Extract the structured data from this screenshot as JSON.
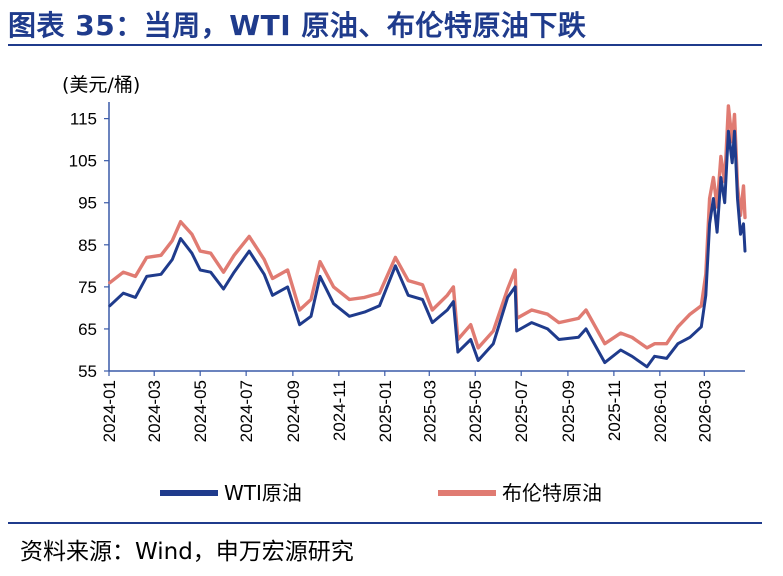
{
  "title": "图表 35：当周，WTI 原油、布伦特原油下跌",
  "unit": "(美元/桶)",
  "source": "资料来源：Wind，申万宏源研究",
  "colors": {
    "wti": "#1f3b8c",
    "brent": "#e07b72",
    "axis": "#3a5aa8"
  },
  "chart_data": {
    "type": "line",
    "title": "图表 35：当周，WTI 原油、布伦特原油下跌",
    "ylabel": "(美元/桶)",
    "xlabel": "",
    "ylim": [
      55,
      118
    ],
    "xlim": [
      "2024-01-01",
      "2026-04-24"
    ],
    "y_ticks": [
      "115",
      "105",
      "95",
      "85",
      "75",
      "65",
      "55"
    ],
    "x_ticks": [
      "2024-01",
      "2024-03",
      "2024-05",
      "2024-07",
      "2024-09",
      "2024-11",
      "2025-01",
      "2025-03",
      "2025-05",
      "2025-07",
      "2025-09",
      "2025-11",
      "2026-01",
      "2026-03"
    ],
    "grid": false,
    "legend": "bottom",
    "series": [
      {
        "name": "WTI原油",
        "points": [
          [
            "2024-01-02",
            70.5
          ],
          [
            "2024-01-20",
            73.5
          ],
          [
            "2024-02-05",
            72.5
          ],
          [
            "2024-02-20",
            77.5
          ],
          [
            "2024-03-10",
            78.0
          ],
          [
            "2024-03-25",
            81.5
          ],
          [
            "2024-04-05",
            86.5
          ],
          [
            "2024-04-20",
            83.0
          ],
          [
            "2024-05-01",
            79.0
          ],
          [
            "2024-05-15",
            78.5
          ],
          [
            "2024-06-01",
            74.5
          ],
          [
            "2024-06-15",
            78.5
          ],
          [
            "2024-07-05",
            83.5
          ],
          [
            "2024-07-25",
            78.0
          ],
          [
            "2024-08-05",
            73.0
          ],
          [
            "2024-08-25",
            75.0
          ],
          [
            "2024-09-10",
            66.0
          ],
          [
            "2024-09-25",
            68.0
          ],
          [
            "2024-10-07",
            77.5
          ],
          [
            "2024-10-25",
            71.0
          ],
          [
            "2024-11-15",
            68.0
          ],
          [
            "2024-12-05",
            69.0
          ],
          [
            "2024-12-25",
            70.5
          ],
          [
            "2025-01-15",
            80.0
          ],
          [
            "2025-02-01",
            73.0
          ],
          [
            "2025-02-20",
            72.0
          ],
          [
            "2025-03-05",
            66.5
          ],
          [
            "2025-03-25",
            69.5
          ],
          [
            "2025-04-02",
            71.5
          ],
          [
            "2025-04-08",
            59.5
          ],
          [
            "2025-04-25",
            62.5
          ],
          [
            "2025-05-05",
            57.5
          ],
          [
            "2025-05-25",
            61.5
          ],
          [
            "2025-06-13",
            72.5
          ],
          [
            "2025-06-23",
            75.0
          ],
          [
            "2025-06-25",
            64.5
          ],
          [
            "2025-07-15",
            66.5
          ],
          [
            "2025-08-05",
            65.0
          ],
          [
            "2025-08-20",
            62.5
          ],
          [
            "2025-09-15",
            63.0
          ],
          [
            "2025-09-25",
            65.0
          ],
          [
            "2025-10-20",
            57.0
          ],
          [
            "2025-11-10",
            60.0
          ],
          [
            "2025-11-25",
            58.5
          ],
          [
            "2025-12-15",
            56.0
          ],
          [
            "2025-12-25",
            58.5
          ],
          [
            "2026-01-10",
            58.0
          ],
          [
            "2026-01-25",
            61.5
          ],
          [
            "2026-02-10",
            63.0
          ],
          [
            "2026-02-25",
            65.5
          ],
          [
            "2026-03-03",
            73.0
          ],
          [
            "2026-03-08",
            90.0
          ],
          [
            "2026-03-13",
            96.0
          ],
          [
            "2026-03-18",
            88.0
          ],
          [
            "2026-03-23",
            101.0
          ],
          [
            "2026-03-28",
            95.0
          ],
          [
            "2026-04-02",
            112.0
          ],
          [
            "2026-04-07",
            104.5
          ],
          [
            "2026-04-10",
            112.0
          ],
          [
            "2026-04-14",
            96.0
          ],
          [
            "2026-04-18",
            87.5
          ],
          [
            "2026-04-22",
            90.0
          ],
          [
            "2026-04-24",
            83.5
          ]
        ]
      },
      {
        "name": "布伦特原油",
        "points": [
          [
            "2024-01-02",
            76.0
          ],
          [
            "2024-01-20",
            78.5
          ],
          [
            "2024-02-05",
            77.5
          ],
          [
            "2024-02-20",
            82.0
          ],
          [
            "2024-03-10",
            82.5
          ],
          [
            "2024-03-25",
            86.0
          ],
          [
            "2024-04-05",
            90.5
          ],
          [
            "2024-04-20",
            87.5
          ],
          [
            "2024-05-01",
            83.5
          ],
          [
            "2024-05-15",
            83.0
          ],
          [
            "2024-06-01",
            78.5
          ],
          [
            "2024-06-15",
            82.5
          ],
          [
            "2024-07-05",
            87.0
          ],
          [
            "2024-07-25",
            81.5
          ],
          [
            "2024-08-05",
            77.0
          ],
          [
            "2024-08-25",
            79.0
          ],
          [
            "2024-09-10",
            69.5
          ],
          [
            "2024-09-25",
            72.0
          ],
          [
            "2024-10-07",
            81.0
          ],
          [
            "2024-10-25",
            75.0
          ],
          [
            "2024-11-15",
            72.0
          ],
          [
            "2024-12-05",
            72.5
          ],
          [
            "2024-12-25",
            73.5
          ],
          [
            "2025-01-15",
            82.0
          ],
          [
            "2025-02-01",
            76.5
          ],
          [
            "2025-02-20",
            75.5
          ],
          [
            "2025-03-05",
            69.5
          ],
          [
            "2025-03-25",
            73.0
          ],
          [
            "2025-04-02",
            75.0
          ],
          [
            "2025-04-08",
            62.5
          ],
          [
            "2025-04-25",
            66.0
          ],
          [
            "2025-05-05",
            60.5
          ],
          [
            "2025-05-25",
            64.5
          ],
          [
            "2025-06-13",
            74.5
          ],
          [
            "2025-06-23",
            79.0
          ],
          [
            "2025-06-25",
            67.5
          ],
          [
            "2025-07-15",
            69.5
          ],
          [
            "2025-08-05",
            68.5
          ],
          [
            "2025-08-20",
            66.5
          ],
          [
            "2025-09-15",
            67.5
          ],
          [
            "2025-09-25",
            69.5
          ],
          [
            "2025-10-20",
            61.5
          ],
          [
            "2025-11-10",
            64.0
          ],
          [
            "2025-11-25",
            63.0
          ],
          [
            "2025-12-15",
            60.5
          ],
          [
            "2025-12-25",
            61.5
          ],
          [
            "2026-01-10",
            61.5
          ],
          [
            "2026-01-25",
            65.5
          ],
          [
            "2026-02-10",
            68.5
          ],
          [
            "2026-02-25",
            70.5
          ],
          [
            "2026-03-03",
            78.0
          ],
          [
            "2026-03-08",
            96.0
          ],
          [
            "2026-03-13",
            101.0
          ],
          [
            "2026-03-18",
            94.0
          ],
          [
            "2026-03-23",
            106.0
          ],
          [
            "2026-03-28",
            100.0
          ],
          [
            "2026-04-02",
            118.0
          ],
          [
            "2026-04-07",
            109.5
          ],
          [
            "2026-04-10",
            116.0
          ],
          [
            "2026-04-14",
            99.0
          ],
          [
            "2026-04-18",
            92.0
          ],
          [
            "2026-04-22",
            99.0
          ],
          [
            "2026-04-24",
            91.5
          ]
        ]
      }
    ]
  }
}
